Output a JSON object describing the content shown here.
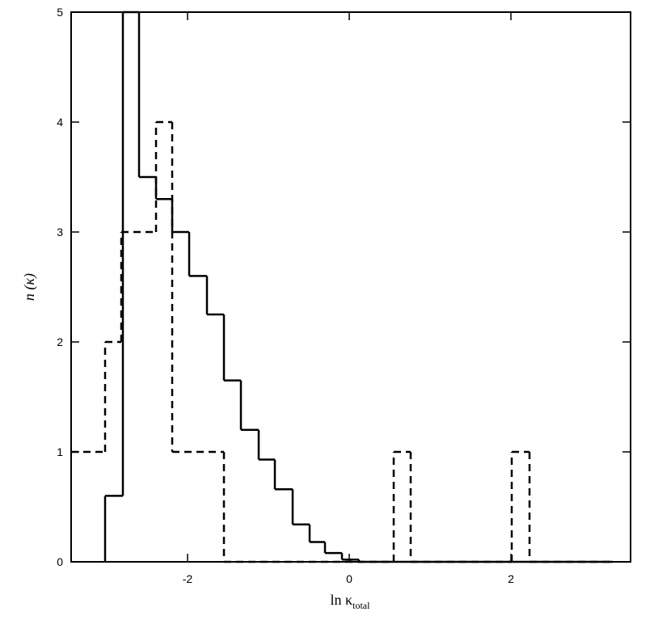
{
  "chart_data": {
    "type": "histogram",
    "x_label": {
      "main": "ln κ",
      "sub": "total"
    },
    "y_label": "n (κ)",
    "xlim": [
      -3.44,
      3.48
    ],
    "xticks": [
      -2,
      0,
      2
    ],
    "ylim": [
      0,
      5
    ],
    "yticks": [
      0,
      1,
      2,
      3,
      4,
      5
    ],
    "series": [
      {
        "color": "#000000",
        "linestyle": "solid",
        "bins": [
          -3.02,
          -2.8,
          -2.6,
          -2.39,
          -2.19,
          -1.98,
          -1.76,
          -1.55,
          -1.34,
          -1.12,
          -0.92,
          -0.7,
          -0.49,
          -0.3,
          -0.09,
          0.12,
          3.26
        ],
        "values": [
          0.6,
          5,
          3.5,
          3.3,
          3,
          2.6,
          2.25,
          1.65,
          1.2,
          0.93,
          0.66,
          0.34,
          0.18,
          0.08,
          0.02,
          0
        ]
      },
      {
        "color": "#000000",
        "linestyle": "dashed",
        "bins": [
          -3.44,
          -3.02,
          -2.82,
          -2.39,
          -2.19,
          -1.55,
          0.55,
          0.76,
          2.01,
          2.23,
          3.26
        ],
        "values": [
          1,
          2,
          3,
          4,
          1,
          0,
          1,
          0,
          1,
          0
        ]
      }
    ]
  }
}
